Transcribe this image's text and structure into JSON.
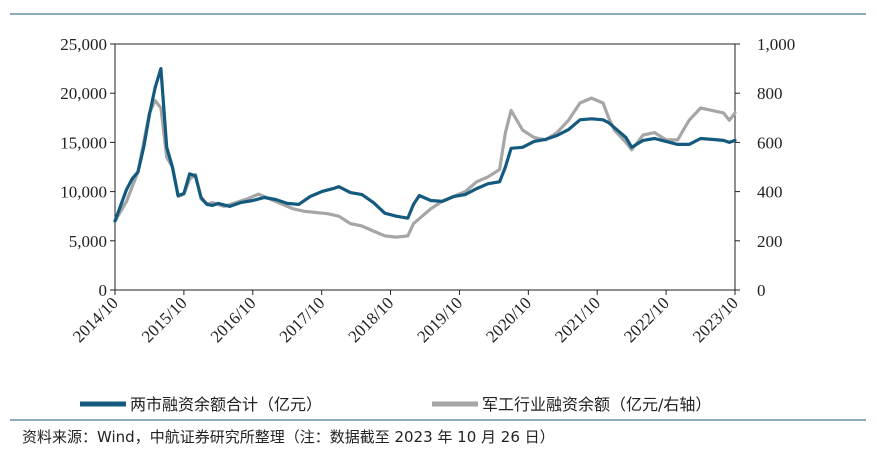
{
  "chart_data": {
    "type": "line",
    "title": "",
    "x_ticks": [
      "2014/10",
      "2015/10",
      "2016/10",
      "2017/10",
      "2018/10",
      "2019/10",
      "2020/10",
      "2021/10",
      "2022/10",
      "2023/10"
    ],
    "y_left": {
      "ylim": [
        0,
        25000
      ],
      "ticks": [
        "0",
        "5,000",
        "10,000",
        "15,000",
        "20,000",
        "25,000"
      ]
    },
    "y_right": {
      "ylim": [
        0,
        1000
      ],
      "ticks": [
        "0",
        "200",
        "400",
        "600",
        "800",
        "1,000"
      ]
    },
    "grid": false,
    "legend_position": "bottom",
    "series": [
      {
        "name": "两市融资余额合计（亿元）",
        "axis": "left",
        "color": "#14597e",
        "points": [
          [
            "2014-10",
            7000
          ],
          [
            "2014-11",
            8600
          ],
          [
            "2014-12",
            10200
          ],
          [
            "2015-01",
            11300
          ],
          [
            "2015-02",
            12000
          ],
          [
            "2015-03",
            14500
          ],
          [
            "2015-04",
            17800
          ],
          [
            "2015-05",
            20600
          ],
          [
            "2015-06",
            22500
          ],
          [
            "2015-07",
            14500
          ],
          [
            "2015-08",
            12500
          ],
          [
            "2015-09",
            9600
          ],
          [
            "2015-10",
            9800
          ],
          [
            "2015-11",
            11800
          ],
          [
            "2015-12",
            11600
          ],
          [
            "2016-01",
            9400
          ],
          [
            "2016-02",
            8700
          ],
          [
            "2016-03",
            8600
          ],
          [
            "2016-04",
            8800
          ],
          [
            "2016-06",
            8500
          ],
          [
            "2016-08",
            8900
          ],
          [
            "2016-10",
            9100
          ],
          [
            "2016-12",
            9400
          ],
          [
            "2017-02",
            9200
          ],
          [
            "2017-04",
            8800
          ],
          [
            "2017-06",
            8700
          ],
          [
            "2017-08",
            9500
          ],
          [
            "2017-10",
            10000
          ],
          [
            "2017-12",
            10300
          ],
          [
            "2018-01",
            10500
          ],
          [
            "2018-03",
            9900
          ],
          [
            "2018-05",
            9700
          ],
          [
            "2018-07",
            8900
          ],
          [
            "2018-09",
            7800
          ],
          [
            "2018-11",
            7500
          ],
          [
            "2018-12",
            7400
          ],
          [
            "2019-01",
            7300
          ],
          [
            "2019-02",
            8700
          ],
          [
            "2019-03",
            9600
          ],
          [
            "2019-05",
            9100
          ],
          [
            "2019-07",
            9000
          ],
          [
            "2019-09",
            9500
          ],
          [
            "2019-11",
            9700
          ],
          [
            "2020-01",
            10300
          ],
          [
            "2020-03",
            10800
          ],
          [
            "2020-05",
            11000
          ],
          [
            "2020-06",
            12500
          ],
          [
            "2020-07",
            14400
          ],
          [
            "2020-09",
            14500
          ],
          [
            "2020-11",
            15100
          ],
          [
            "2021-01",
            15300
          ],
          [
            "2021-03",
            15700
          ],
          [
            "2021-05",
            16300
          ],
          [
            "2021-07",
            17300
          ],
          [
            "2021-09",
            17400
          ],
          [
            "2021-11",
            17300
          ],
          [
            "2021-12",
            17000
          ],
          [
            "2022-01",
            16500
          ],
          [
            "2022-03",
            15500
          ],
          [
            "2022-04",
            14500
          ],
          [
            "2022-06",
            15200
          ],
          [
            "2022-08",
            15400
          ],
          [
            "2022-10",
            15100
          ],
          [
            "2022-12",
            14800
          ],
          [
            "2023-02",
            14800
          ],
          [
            "2023-04",
            15400
          ],
          [
            "2023-06",
            15300
          ],
          [
            "2023-08",
            15200
          ],
          [
            "2023-09",
            15000
          ],
          [
            "2023-10",
            15200
          ]
        ]
      },
      {
        "name": "军工行业融资余额（亿元/右轴）",
        "axis": "right",
        "color": "#a6a6a6",
        "points": [
          [
            "2014-10",
            280
          ],
          [
            "2014-11",
            320
          ],
          [
            "2014-12",
            360
          ],
          [
            "2015-01",
            420
          ],
          [
            "2015-02",
            480
          ],
          [
            "2015-03",
            600
          ],
          [
            "2015-04",
            720
          ],
          [
            "2015-05",
            770
          ],
          [
            "2015-06",
            740
          ],
          [
            "2015-07",
            540
          ],
          [
            "2015-08",
            500
          ],
          [
            "2015-09",
            380
          ],
          [
            "2015-10",
            390
          ],
          [
            "2015-11",
            450
          ],
          [
            "2015-12",
            470
          ],
          [
            "2016-01",
            370
          ],
          [
            "2016-02",
            350
          ],
          [
            "2016-03",
            355
          ],
          [
            "2016-05",
            340
          ],
          [
            "2016-07",
            355
          ],
          [
            "2016-09",
            370
          ],
          [
            "2016-11",
            390
          ],
          [
            "2017-01",
            370
          ],
          [
            "2017-03",
            350
          ],
          [
            "2017-05",
            330
          ],
          [
            "2017-07",
            320
          ],
          [
            "2017-09",
            315
          ],
          [
            "2017-11",
            310
          ],
          [
            "2018-01",
            300
          ],
          [
            "2018-03",
            270
          ],
          [
            "2018-05",
            260
          ],
          [
            "2018-07",
            240
          ],
          [
            "2018-09",
            220
          ],
          [
            "2018-11",
            215
          ],
          [
            "2019-01",
            220
          ],
          [
            "2019-02",
            270
          ],
          [
            "2019-03",
            290
          ],
          [
            "2019-05",
            330
          ],
          [
            "2019-07",
            360
          ],
          [
            "2019-09",
            380
          ],
          [
            "2019-11",
            400
          ],
          [
            "2020-01",
            440
          ],
          [
            "2020-03",
            460
          ],
          [
            "2020-05",
            490
          ],
          [
            "2020-06",
            640
          ],
          [
            "2020-07",
            730
          ],
          [
            "2020-09",
            650
          ],
          [
            "2020-11",
            620
          ],
          [
            "2021-01",
            610
          ],
          [
            "2021-03",
            640
          ],
          [
            "2021-05",
            690
          ],
          [
            "2021-07",
            760
          ],
          [
            "2021-09",
            780
          ],
          [
            "2021-11",
            760
          ],
          [
            "2021-12",
            700
          ],
          [
            "2022-01",
            650
          ],
          [
            "2022-03",
            600
          ],
          [
            "2022-04",
            570
          ],
          [
            "2022-06",
            630
          ],
          [
            "2022-08",
            640
          ],
          [
            "2022-10",
            610
          ],
          [
            "2022-12",
            610
          ],
          [
            "2023-02",
            690
          ],
          [
            "2023-04",
            740
          ],
          [
            "2023-06",
            730
          ],
          [
            "2023-08",
            720
          ],
          [
            "2023-09",
            690
          ],
          [
            "2023-10",
            720
          ]
        ]
      }
    ]
  },
  "source_note": "资料来源：Wind，中航证券研究所整理（注：数据截至 2023 年 10 月 26 日）"
}
